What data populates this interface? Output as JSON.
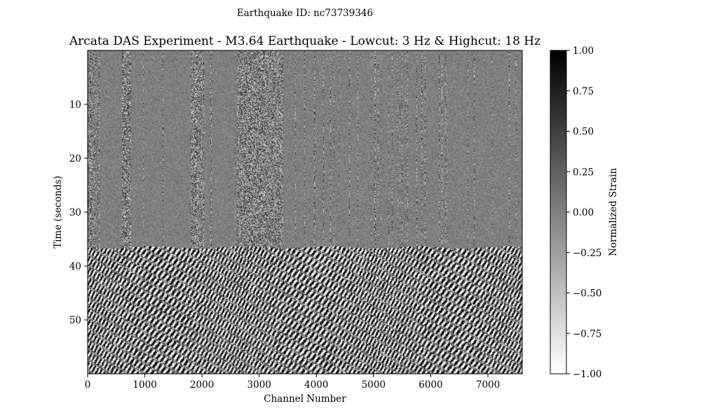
{
  "chart_data": {
    "type": "heatmap",
    "suptitle": "Earthquake ID: nc73739346",
    "title": "Arcata DAS Experiment - M3.64 Earthquake - Lowcut: 3 Hz & Highcut: 18 Hz",
    "xlabel": "Channel Number",
    "ylabel": "Time (seconds)",
    "colorbar_label": "Normalized Strain",
    "xlim": [
      0,
      7600
    ],
    "ylim": [
      60,
      0
    ],
    "x_ticks": [
      0,
      1000,
      2000,
      3000,
      4000,
      5000,
      6000,
      7000
    ],
    "y_ticks": [
      10,
      20,
      30,
      40,
      50
    ],
    "colorbar_range": [
      -1.0,
      1.0
    ],
    "colorbar_ticks": [
      "1.00",
      "0.75",
      "0.50",
      "0.25",
      "0.00",
      "−0.25",
      "−0.50",
      "−0.75",
      "−1.00"
    ],
    "colormap": "gray_r",
    "wave_arrival_time": 36.5,
    "noisy_channel_bands": [
      [
        2600,
        3400
      ],
      [
        600,
        750
      ],
      [
        1800,
        2000
      ]
    ],
    "colors": {
      "max": "#000000",
      "zero": "#999999",
      "min": "#ffffff"
    }
  }
}
